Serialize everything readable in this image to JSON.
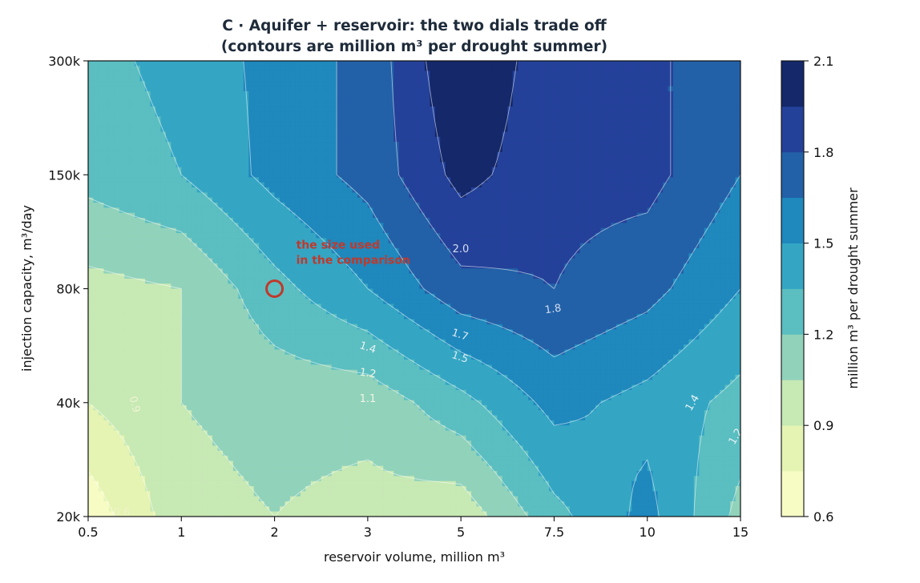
{
  "chart_data": {
    "type": "heatmap",
    "subtype": "filled-contour",
    "title_line1": "C · Aquifer + reservoir: the two dials trade off",
    "title_line2": "(contours are million m³ per drought summer)",
    "xlabel": "reservoir volume, million m³",
    "ylabel": "injection capacity, m³/day",
    "x_ticks": [
      "0.5",
      "1",
      "2",
      "3",
      "5",
      "7.5",
      "10",
      "15"
    ],
    "y_ticks": [
      "20k",
      "40k",
      "80k",
      "150k",
      "300k"
    ],
    "x_values": [
      0.5,
      1,
      2,
      3,
      5,
      7.5,
      10,
      15
    ],
    "y_values": [
      20000,
      40000,
      80000,
      150000,
      300000
    ],
    "x_scale": "categorical (evenly spaced ticks)",
    "y_scale": "categorical (evenly spaced ticks)",
    "z": [
      [
        0.65,
        1.0,
        1.05,
        1.0,
        0.95,
        1.3,
        1.55,
        1.15
      ],
      [
        0.9,
        1.05,
        1.1,
        1.1,
        1.3,
        1.55,
        1.45,
        1.3
      ],
      [
        1.0,
        1.05,
        1.3,
        1.5,
        1.75,
        1.8,
        1.7,
        1.5
      ],
      [
        1.25,
        1.35,
        1.55,
        1.7,
        2.0,
        1.85,
        1.85,
        1.65
      ],
      [
        1.3,
        1.4,
        1.55,
        1.7,
        2.1,
        1.85,
        1.85,
        1.65
      ]
    ],
    "levels": [
      0.6,
      0.75,
      0.9,
      1.05,
      1.2,
      1.35,
      1.5,
      1.65,
      1.8,
      1.95,
      2.1
    ],
    "colorbar": {
      "label": "million m³ per drought summer",
      "ticks": [
        "0.6",
        "0.9",
        "1.2",
        "1.5",
        "1.8",
        "2.1"
      ],
      "range": [
        0.6,
        2.1
      ],
      "colormap": "YlGnBu",
      "colors": [
        "#f7fcc5",
        "#e5f4b3",
        "#c7e9b4",
        "#91d2bb",
        "#5bbec1",
        "#34a6c4",
        "#1f88bd",
        "#2261a8",
        "#24419a",
        "#14286a"
      ]
    },
    "contour_line_labels": [
      "0.6",
      "0.9",
      "1.1",
      "1.2",
      "1.4",
      "1.5",
      "1.7",
      "1.8",
      "2.0",
      "1.4",
      "1.2"
    ],
    "annotation": {
      "text_line1": "the size used",
      "text_line2": "in the comparison",
      "x": 2,
      "y": 80000,
      "color": "#c0392b"
    },
    "grid": false
  }
}
